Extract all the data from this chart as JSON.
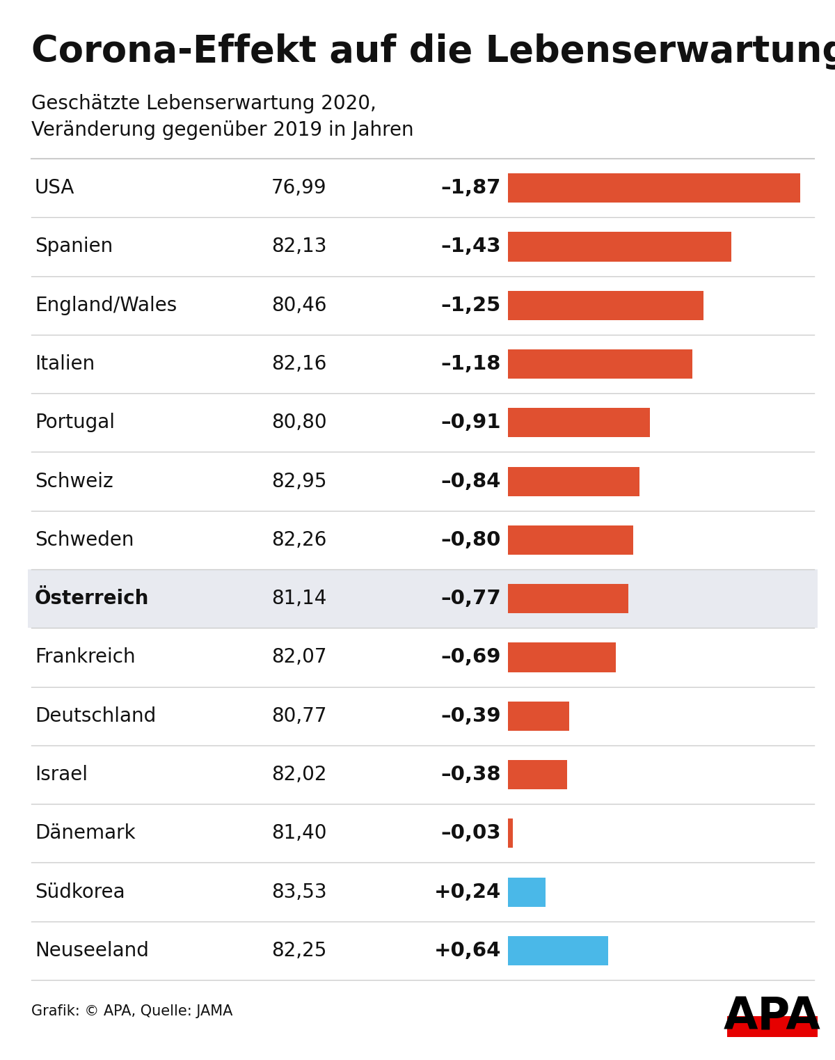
{
  "title": "Corona-Effekt auf die Lebenserwartung",
  "subtitle_line1": "Geschätzte Lebenserwartung 2020,",
  "subtitle_line2": "Veränderung gegenüber 2019 in Jahren",
  "countries": [
    "USA",
    "Spanien",
    "England/Wales",
    "Italien",
    "Portugal",
    "Schweiz",
    "Schweden",
    "Österreich",
    "Frankreich",
    "Deutschland",
    "Israel",
    "Dänemark",
    "Südkorea",
    "Neuseeland"
  ],
  "life_expectancy_str": [
    "76,99",
    "82,13",
    "80,46",
    "82,16",
    "80,80",
    "82,95",
    "82,26",
    "81,14",
    "82,07",
    "80,77",
    "82,02",
    "81,40",
    "83,53",
    "82,25"
  ],
  "changes": [
    -1.87,
    -1.43,
    -1.25,
    -1.18,
    -0.91,
    -0.84,
    -0.8,
    -0.77,
    -0.69,
    -0.39,
    -0.38,
    -0.03,
    0.24,
    0.64
  ],
  "changes_str": [
    "–1,87",
    "–1,43",
    "–1,25",
    "–1,18",
    "–0,91",
    "–0,84",
    "–0,80",
    "–0,77",
    "–0,69",
    "–0,39",
    "–0,38",
    "–0,03",
    "+0,24",
    "+0,64"
  ],
  "highlighted_row": 7,
  "highlight_bg": "#e8eaf0",
  "bar_color_negative": "#e05030",
  "bar_color_positive": "#4ab8e8",
  "background_color": "#ffffff",
  "text_color": "#111111",
  "separator_color": "#cccccc",
  "footer_text": "Grafik: © APA, Quelle: JAMA",
  "apa_red": "#e60000",
  "max_abs_change": 1.87
}
